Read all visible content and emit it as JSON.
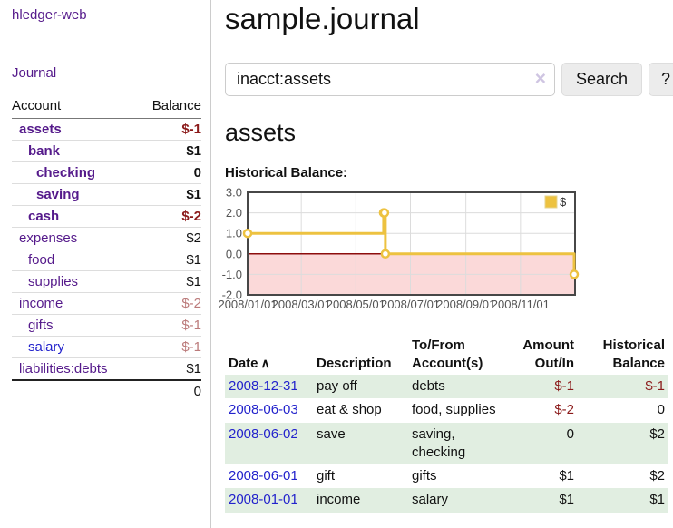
{
  "colors": {
    "link_purple": "#551a8b",
    "link_blue": "#2323cc",
    "negative_strong": "#8b1a1a",
    "negative_muted": "#bb7a7a",
    "row_stripe_green": "#e1eee1",
    "chart_line_gold": "#edc240",
    "chart_negative_region": "#fbd9d9",
    "chart_zero_line": "#8c0d0d",
    "chart_border": "#474747",
    "chart_grid": "#dcdcdc",
    "chart_axis_text": "#545454"
  },
  "app": {
    "title": "hledger-web",
    "nav_journal": "Journal"
  },
  "sidebar": {
    "headers": [
      "Account",
      "Balance"
    ],
    "rows": [
      {
        "account": "assets",
        "balance": "$-1",
        "depth": 1,
        "bold": true,
        "balance_color": "negative_strong"
      },
      {
        "account": "bank",
        "balance": "$1",
        "depth": 2,
        "bold": true
      },
      {
        "account": "checking",
        "balance": "0",
        "depth": 3,
        "bold": true
      },
      {
        "account": "saving",
        "balance": "$1",
        "depth": 3,
        "bold": true
      },
      {
        "account": "cash",
        "balance": "$-2",
        "depth": 2,
        "bold": true,
        "balance_color": "negative_strong"
      },
      {
        "account": "expenses",
        "balance": "$2",
        "depth": 1
      },
      {
        "account": "food",
        "balance": "$1",
        "depth": 2
      },
      {
        "account": "supplies",
        "balance": "$1",
        "depth": 2
      },
      {
        "account": "income",
        "balance": "$-2",
        "depth": 1,
        "balance_color": "negative_muted"
      },
      {
        "account": "gifts",
        "balance": "$-1",
        "depth": 2,
        "balance_color": "negative_muted"
      },
      {
        "account": "salary",
        "balance": "$-1",
        "depth": 2,
        "link_color": "blue",
        "balance_color": "negative_muted"
      },
      {
        "account": "liabilities:debts",
        "balance": "$1",
        "depth": 1
      }
    ],
    "total": "0"
  },
  "main": {
    "title": "sample.journal",
    "search": {
      "value": "inacct:assets",
      "clear_icon": "×",
      "button_label": "Search",
      "help_label": "?"
    },
    "account_heading": "assets",
    "chart_title": "Historical Balance:"
  },
  "chart_data": {
    "type": "line",
    "step": true,
    "title": "Historical Balance",
    "series": [
      {
        "name": "$",
        "color": "#edc240",
        "points": [
          [
            "2008/01/01",
            1
          ],
          [
            "2008/06/01",
            2
          ],
          [
            "2008/06/02",
            2
          ],
          [
            "2008/06/03",
            0
          ],
          [
            "2008/12/31",
            -1
          ]
        ]
      }
    ],
    "x_range": [
      "2008/01/01",
      "2009/01/01"
    ],
    "x_ticks": [
      "2008/01/01",
      "2008/03/01",
      "2008/05/01",
      "2008/07/01",
      "2008/09/01",
      "2008/11/01"
    ],
    "y_ticks": [
      3.0,
      2.0,
      1.0,
      0.0,
      -1.0,
      -2.0
    ],
    "ylim": [
      -2,
      3
    ],
    "grid": true,
    "negative_region": true,
    "legend": {
      "label": "$",
      "position": "top-right"
    }
  },
  "register": {
    "headers": [
      {
        "label": "Date",
        "sort_indicator": "∧"
      },
      {
        "label": "Description"
      },
      {
        "label": "To/From Account(s)"
      },
      {
        "label": "Amount Out/In"
      },
      {
        "label": "Historical Balance"
      }
    ],
    "rows": [
      {
        "date": "2008-12-31",
        "description": "pay off",
        "accounts": "debts",
        "amount": "$-1",
        "balance": "$-1",
        "amount_negative": true,
        "balance_negative": true
      },
      {
        "date": "2008-06-03",
        "description": "eat & shop",
        "accounts": "food, supplies",
        "amount": "$-2",
        "balance": "0",
        "amount_negative": true,
        "balance_negative": false
      },
      {
        "date": "2008-06-02",
        "description": "save",
        "accounts": "saving, checking",
        "amount": "0",
        "balance": "$2",
        "amount_negative": false,
        "balance_negative": false
      },
      {
        "date": "2008-06-01",
        "description": "gift",
        "accounts": "gifts",
        "amount": "$1",
        "balance": "$2",
        "amount_negative": false,
        "balance_negative": false
      },
      {
        "date": "2008-01-01",
        "description": "income",
        "accounts": "salary",
        "amount": "$1",
        "balance": "$1",
        "amount_negative": false,
        "balance_negative": false
      }
    ]
  }
}
